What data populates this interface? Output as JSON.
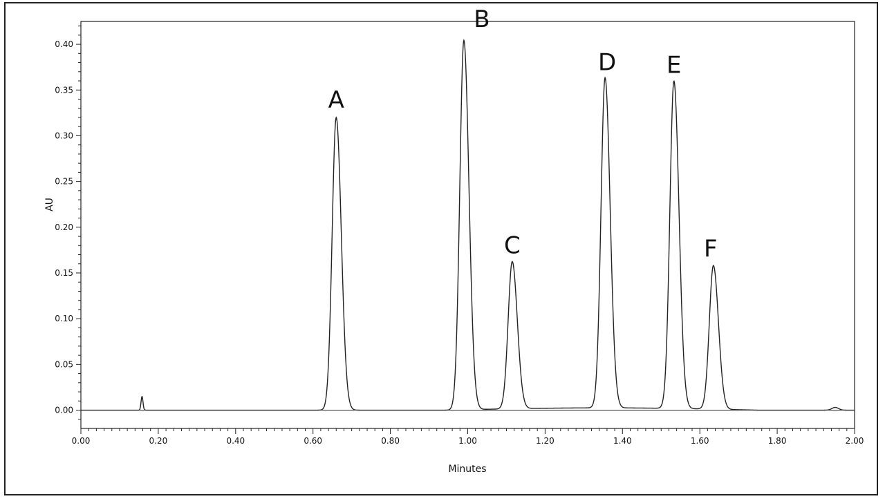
{
  "chart_data": {
    "type": "line",
    "title": "",
    "xlabel": "Minutes",
    "ylabel": "AU",
    "xlim": [
      0.0,
      2.0
    ],
    "ylim": [
      -0.02,
      0.425
    ],
    "grid": false,
    "x_ticks": [
      "0.00",
      "0.20",
      "0.40",
      "0.60",
      "0.80",
      "1.00",
      "1.20",
      "1.40",
      "1.60",
      "1.80",
      "2.00"
    ],
    "y_ticks": [
      "0.00",
      "0.05",
      "0.10",
      "0.15",
      "0.20",
      "0.25",
      "0.30",
      "0.35",
      "0.40"
    ],
    "colors": {
      "trace": "#222222",
      "axes": "#222222",
      "frame": "#222222"
    },
    "peaks": [
      {
        "label": "A",
        "x": 0.66,
        "y": 0.32
      },
      {
        "label": "B",
        "x": 0.99,
        "y": 0.404
      },
      {
        "label": "C",
        "x": 1.115,
        "y": 0.161
      },
      {
        "label": "D",
        "x": 1.355,
        "y": 0.361
      },
      {
        "label": "E",
        "x": 1.533,
        "y": 0.358
      },
      {
        "label": "F",
        "x": 1.635,
        "y": 0.157
      }
    ],
    "minor_peaks": [
      {
        "x": 0.158,
        "y": 0.015
      }
    ]
  }
}
